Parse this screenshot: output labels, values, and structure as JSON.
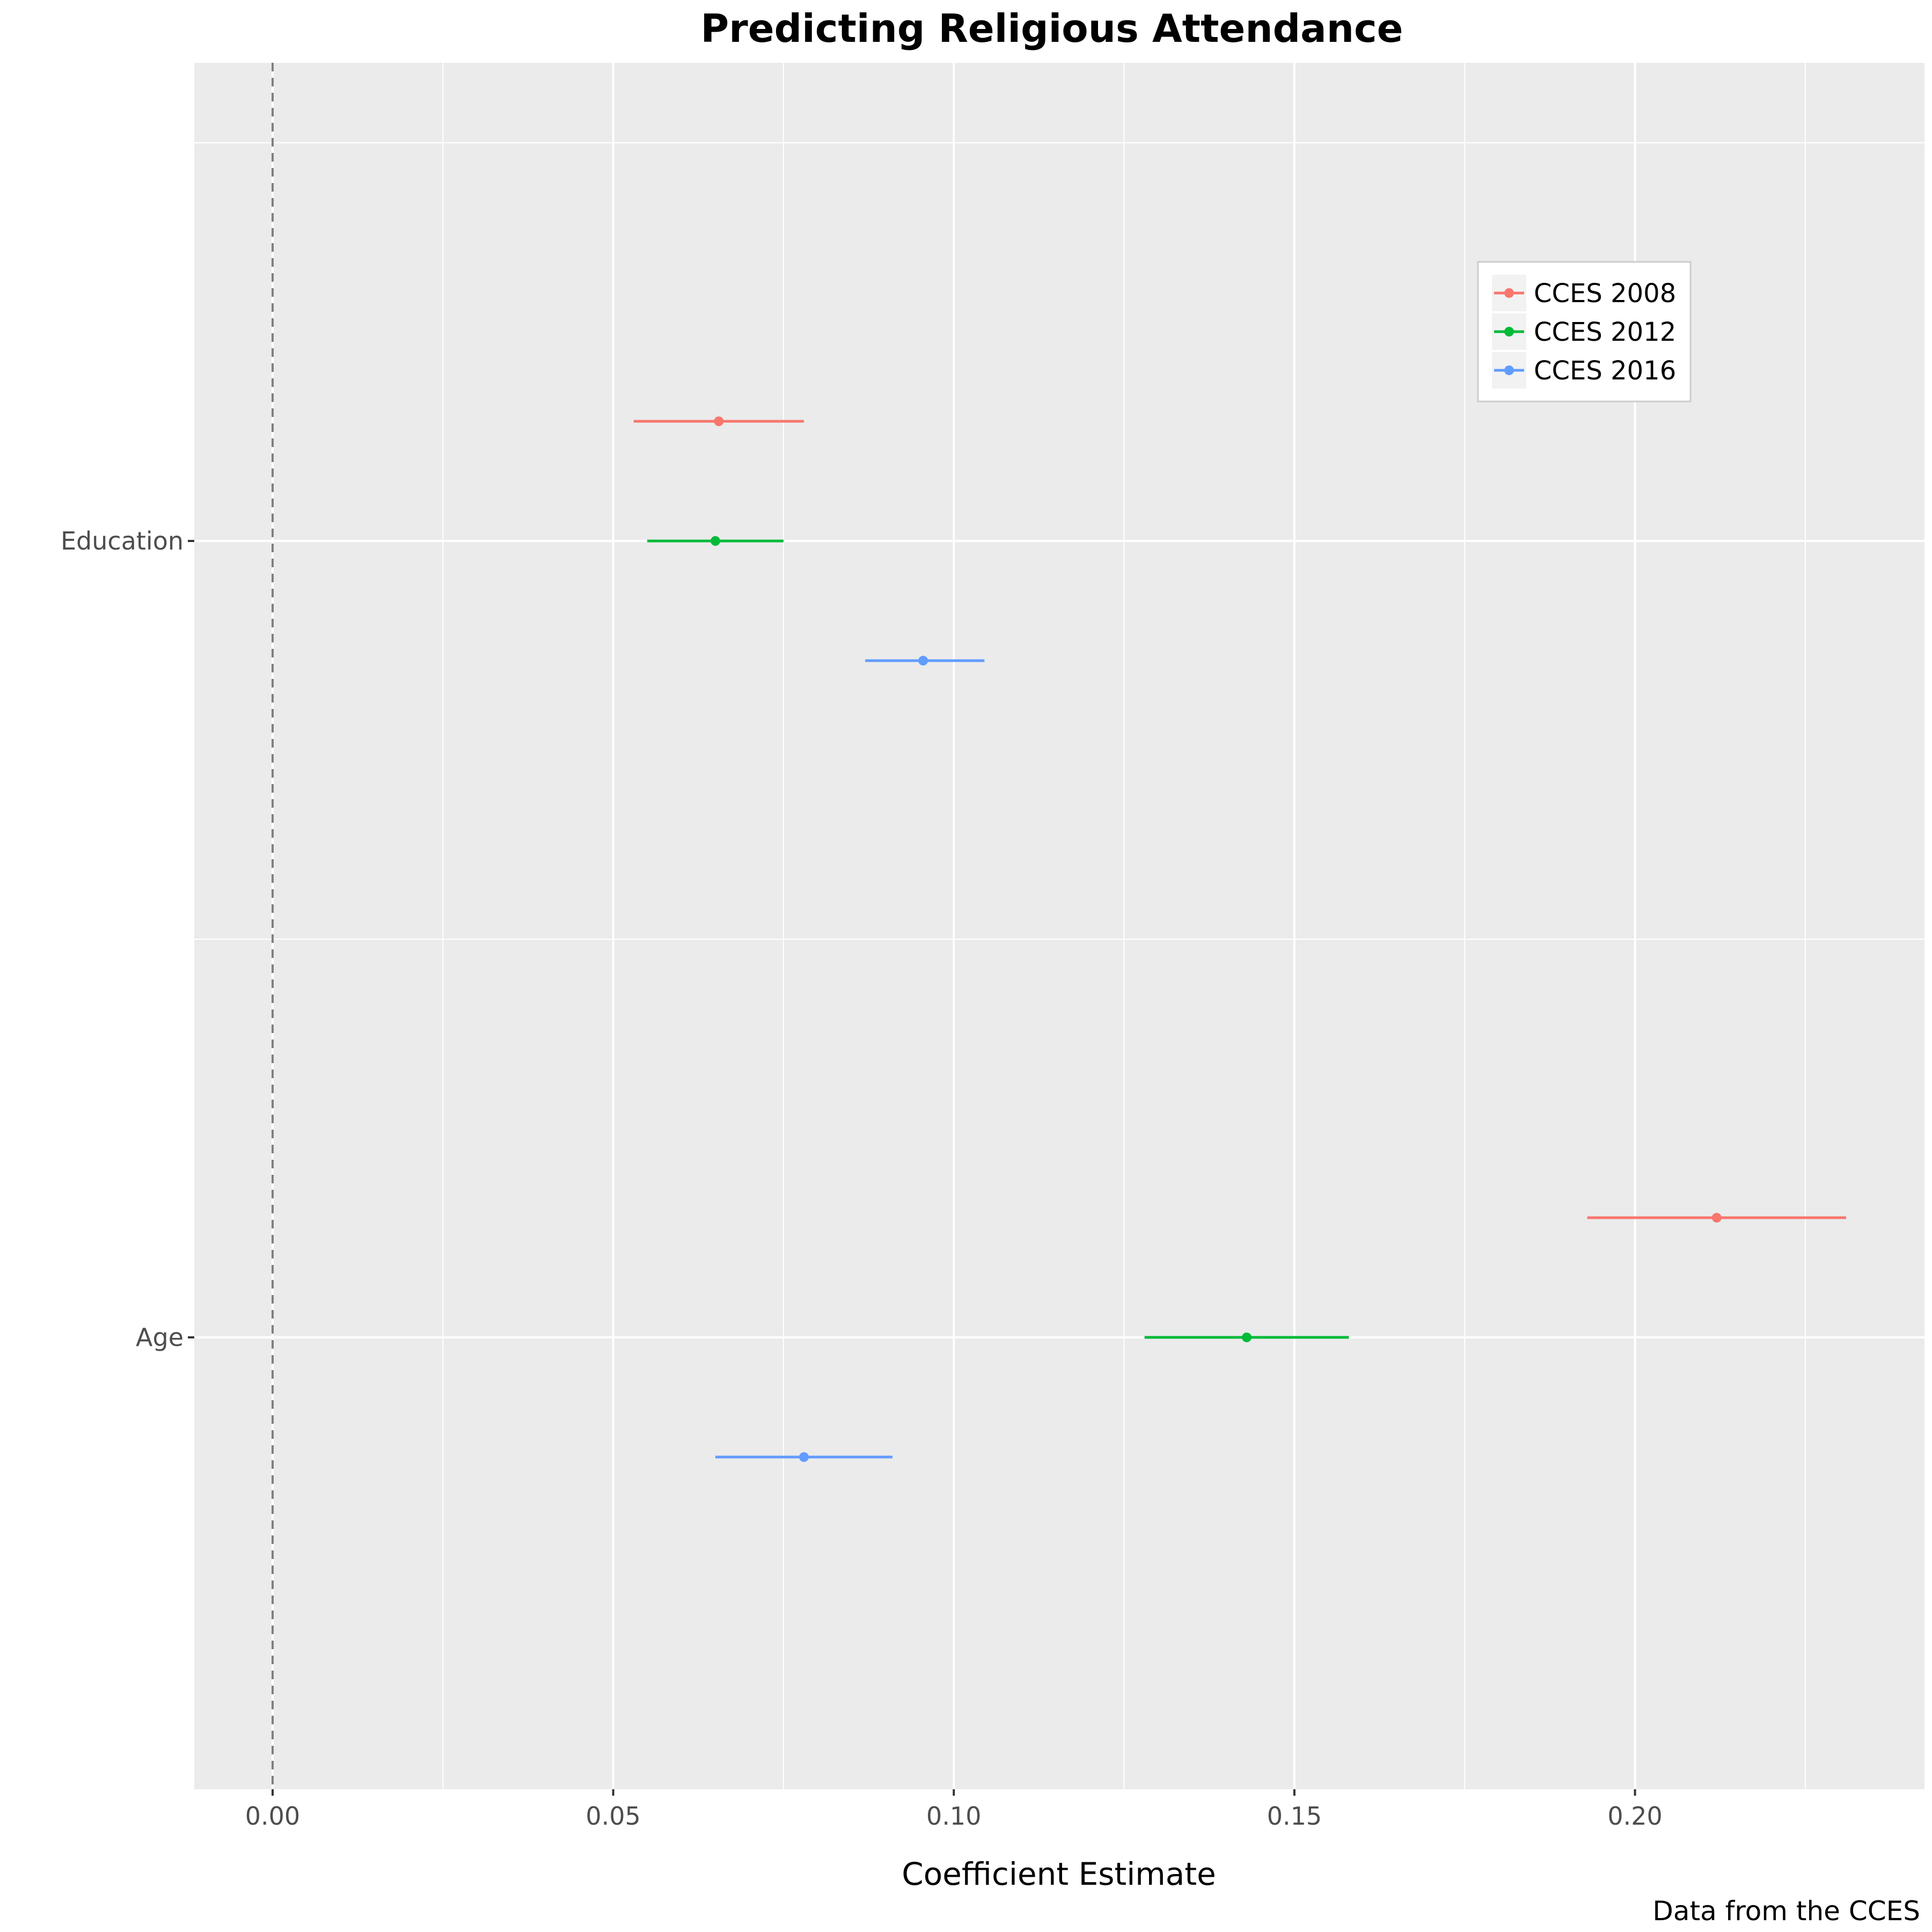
{
  "chart_data": {
    "type": "scatter",
    "subtype": "coefficient-plot",
    "title": "Predicting Religious Attendance",
    "xlabel": "Coefficient Estimate",
    "ylabel": "",
    "caption": "Data from the CCES",
    "xlim": [
      -0.0115,
      0.2425
    ],
    "x_ticks": [
      0.0,
      0.05,
      0.1,
      0.15,
      0.2
    ],
    "x_tick_labels": [
      "0.00",
      "0.05",
      "0.10",
      "0.15",
      "0.20"
    ],
    "reference_line": {
      "x": 0,
      "style": "dashed"
    },
    "categories": [
      "Education",
      "Age"
    ],
    "grid": true,
    "legend_position": "top-right",
    "series": [
      {
        "name": "CCES 2008",
        "color": "#F8766D",
        "points": [
          {
            "category": "Education",
            "estimate": 0.0655,
            "low": 0.053,
            "high": 0.078
          },
          {
            "category": "Age",
            "estimate": 0.212,
            "low": 0.193,
            "high": 0.231
          }
        ]
      },
      {
        "name": "CCES 2012",
        "color": "#00BA38",
        "points": [
          {
            "category": "Education",
            "estimate": 0.065,
            "low": 0.055,
            "high": 0.075
          },
          {
            "category": "Age",
            "estimate": 0.143,
            "low": 0.128,
            "high": 0.158
          }
        ]
      },
      {
        "name": "CCES 2016",
        "color": "#619CFF",
        "points": [
          {
            "category": "Education",
            "estimate": 0.0955,
            "low": 0.087,
            "high": 0.1045
          },
          {
            "category": "Age",
            "estimate": 0.078,
            "low": 0.065,
            "high": 0.091
          }
        ]
      }
    ]
  }
}
